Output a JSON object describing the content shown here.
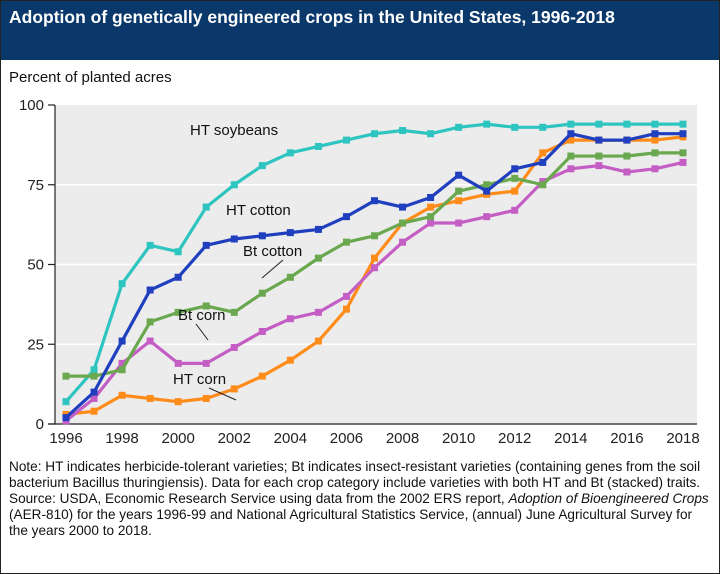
{
  "title": "Adoption of genetically engineered crops in the United States, 1996-2018",
  "colors": {
    "header_bg": "#0b386b",
    "plot_bg": "#ececec"
  },
  "chart_data": {
    "type": "line",
    "title": "Adoption of genetically engineered crops in the United States, 1996-2018",
    "ylabel": "Percent of planted acres",
    "xlabel": "",
    "ylim": [
      0,
      100
    ],
    "xlim": [
      1996,
      2018
    ],
    "yticks": [
      0,
      25,
      50,
      75,
      100
    ],
    "xticks": [
      1996,
      1998,
      2000,
      2002,
      2004,
      2006,
      2008,
      2010,
      2012,
      2014,
      2016,
      2018
    ],
    "grid": "horizontal",
    "x": [
      1996,
      1997,
      1998,
      1999,
      2000,
      2001,
      2002,
      2003,
      2004,
      2005,
      2006,
      2007,
      2008,
      2009,
      2010,
      2011,
      2012,
      2013,
      2014,
      2015,
      2016,
      2017,
      2018
    ],
    "series": [
      {
        "name": "HT soybeans",
        "color": "#2ec4c0",
        "values": [
          7,
          17,
          44,
          56,
          54,
          68,
          75,
          81,
          85,
          87,
          89,
          91,
          92,
          91,
          93,
          94,
          93,
          93,
          94,
          94,
          94,
          94,
          94
        ]
      },
      {
        "name": "HT corn",
        "color": "#ff8c1a",
        "values": [
          3,
          4,
          9,
          8,
          7,
          8,
          11,
          15,
          20,
          26,
          36,
          52,
          63,
          68,
          70,
          72,
          73,
          85,
          89,
          89,
          89,
          89,
          90
        ]
      },
      {
        "name": "Bt corn",
        "color": "#c45ec4",
        "values": [
          1,
          8,
          19,
          26,
          19,
          19,
          24,
          29,
          33,
          35,
          40,
          49,
          57,
          63,
          63,
          65,
          67,
          76,
          80,
          81,
          79,
          80,
          82
        ]
      },
      {
        "name": "Bt cotton",
        "color": "#6aa84f",
        "values": [
          15,
          15,
          17,
          32,
          35,
          37,
          35,
          41,
          46,
          52,
          57,
          59,
          63,
          65,
          73,
          75,
          77,
          75,
          84,
          84,
          84,
          85,
          85
        ]
      },
      {
        "name": "HT cotton",
        "color": "#1f3fbf",
        "values": [
          2,
          10,
          26,
          42,
          46,
          56,
          58,
          59,
          60,
          61,
          65,
          70,
          68,
          71,
          78,
          73,
          80,
          82,
          91,
          89,
          89,
          91,
          91
        ]
      }
    ]
  },
  "notes": {
    "note": "Note: HT indicates herbicide-tolerant varieties; Bt indicates insect-resistant varieties (containing genes from the soil bacterium Bacillus thuringiensis). Data for each crop category include varieties with both HT and Bt (stacked) traits.",
    "source_prefix": "Source: USDA, Economic Research Service using data from the 2002 ERS report, ",
    "source_title": "Adoption of Bioengineered Crops",
    "source_suffix": " (AER-810) for the years 1996-99 and National Agricultural Statistics Service, (annual) June Agricultural Survey for the years 2000 to 2018."
  }
}
